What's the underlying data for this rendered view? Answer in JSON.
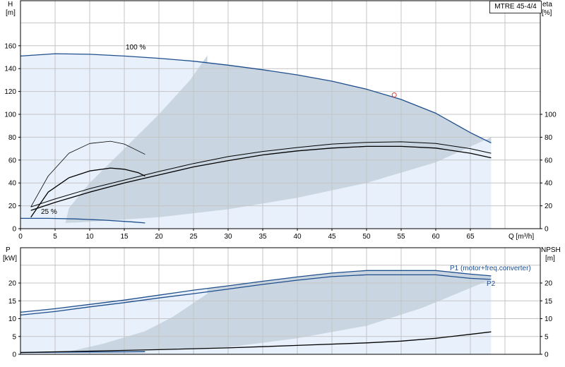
{
  "model": "MTRE 45-4/4",
  "colors": {
    "grid": "#c4c4c4",
    "axis": "#000000",
    "range_light": "#e8f1fb",
    "range_dark": "#c9d6e2",
    "head_curve": "#1f4e8c",
    "power_curve": "#1f4e8c",
    "efficiency_curve": "#000000",
    "duty_point": "#e04040"
  },
  "chart_data": [
    {
      "type": "line",
      "x_label": "Q [m³/h]",
      "x_ticks": [
        "0",
        "5",
        "10",
        "15",
        "20",
        "25",
        "30",
        "35",
        "40",
        "45",
        "50",
        "55",
        "60",
        "65"
      ],
      "xlim": [
        0,
        70
      ],
      "y_label_left": [
        "H",
        "[m]"
      ],
      "y_ticks_left": [
        "0",
        "20",
        "40",
        "60",
        "80",
        "100",
        "120",
        "140",
        "160"
      ],
      "ylim_left": [
        0,
        185
      ],
      "y_label_right": [
        "eta",
        "[%]"
      ],
      "y_ticks_right": [
        "0",
        "20",
        "40",
        "60",
        "80",
        "100"
      ],
      "annotations": [
        "100 %",
        "25 %"
      ],
      "grid": true,
      "series": [
        {
          "role": "head-max",
          "x": [
            0,
            5,
            10,
            15,
            20,
            25,
            30,
            35,
            40,
            45,
            50,
            55,
            60,
            65,
            68
          ],
          "y": [
            151,
            153,
            152.5,
            151,
            149,
            146.5,
            143,
            139,
            134.5,
            129,
            122,
            113,
            101,
            84,
            75
          ]
        },
        {
          "role": "head-min",
          "x": [
            0,
            4,
            8,
            12,
            16,
            18
          ],
          "y": [
            9,
            9,
            8.5,
            7.5,
            6,
            5
          ]
        },
        {
          "role": "eta-max-a",
          "x": [
            1.5,
            5,
            10,
            15,
            20,
            25,
            30,
            35,
            40,
            45,
            50,
            55,
            60,
            65,
            68
          ],
          "y": [
            19,
            26,
            35,
            42.5,
            50,
            57,
            63,
            67.5,
            71,
            74,
            75.5,
            76,
            74.5,
            70,
            66
          ]
        },
        {
          "role": "eta-max-b",
          "x": [
            1.5,
            5,
            10,
            15,
            20,
            25,
            30,
            35,
            40,
            45,
            50,
            55,
            60,
            65,
            68
          ],
          "y": [
            16,
            23,
            32,
            40,
            47,
            54,
            59.5,
            64.5,
            68,
            70.5,
            72,
            72,
            70.5,
            66,
            62
          ]
        },
        {
          "role": "eta-min-a",
          "x": [
            1.5,
            4,
            7,
            10,
            13,
            15,
            17,
            18
          ],
          "y": [
            19,
            46,
            66,
            74.5,
            76.5,
            74,
            68,
            65
          ]
        },
        {
          "role": "eta-min-b",
          "x": [
            1.5,
            4,
            7,
            10,
            13,
            15,
            17,
            18
          ],
          "y": [
            10,
            32,
            44.5,
            50.5,
            53,
            52,
            49,
            46
          ]
        },
        {
          "role": "duty-point",
          "x": [
            54
          ],
          "y": [
            117
          ]
        }
      ]
    },
    {
      "type": "line",
      "x_ticks": [
        "0",
        "5",
        "10",
        "15",
        "20",
        "25",
        "30",
        "35",
        "40",
        "45",
        "50",
        "55",
        "60",
        "65"
      ],
      "xlim": [
        0,
        70
      ],
      "y_label_left": [
        "P",
        "[kW]"
      ],
      "y_ticks_left": [
        "0",
        "5",
        "10",
        "15",
        "20"
      ],
      "ylim_left": [
        0,
        30
      ],
      "y_label_right": [
        "NPSH",
        "[m]"
      ],
      "y_ticks_right": [
        "0",
        "5",
        "10",
        "15",
        "20"
      ],
      "grid": true,
      "series": [
        {
          "name": "P1 (motor+freq.converter)",
          "x": [
            0,
            5,
            10,
            15,
            20,
            25,
            30,
            35,
            40,
            45,
            50,
            55,
            60,
            65,
            68
          ],
          "y": [
            11.8,
            12.8,
            14,
            15.2,
            16.6,
            18,
            19.2,
            20.5,
            21.7,
            22.8,
            23.5,
            23.5,
            23.5,
            22.5,
            22
          ]
        },
        {
          "name": "P2",
          "x": [
            0,
            5,
            10,
            15,
            20,
            25,
            30,
            35,
            40,
            45,
            50,
            55,
            60,
            65,
            68
          ],
          "y": [
            11,
            12,
            13.3,
            14.5,
            15.8,
            17,
            18.3,
            19.6,
            20.8,
            21.8,
            22.3,
            22.3,
            22.3,
            21.3,
            21
          ]
        },
        {
          "role": "power-min",
          "x": [
            0,
            5,
            10,
            15,
            18
          ],
          "y": [
            0.5,
            0.6,
            0.65,
            0.7,
            0.75
          ]
        },
        {
          "role": "npsh",
          "x": [
            0,
            10,
            20,
            30,
            40,
            50,
            55,
            60,
            65,
            68
          ],
          "y": [
            0.5,
            0.9,
            1.3,
            1.8,
            2.5,
            3.2,
            3.7,
            4.5,
            5.6,
            6.3
          ]
        }
      ]
    }
  ]
}
